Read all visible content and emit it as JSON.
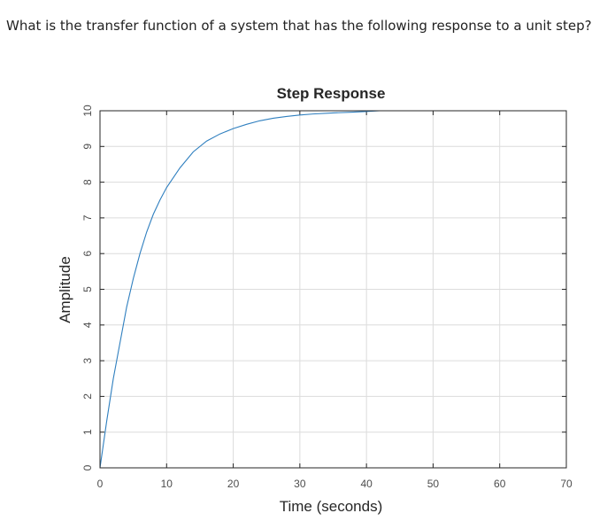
{
  "question": {
    "text": "What is the transfer function of a system that has the following response to a unit step?"
  },
  "colors": {
    "line": "#2f7fbf",
    "axis": "#262626",
    "grid": "#dcdcdc",
    "tick_text": "#4d4d4d"
  },
  "chart_data": {
    "type": "line",
    "title": "Step Response",
    "xlabel": "Time (seconds)",
    "ylabel": "Amplitude",
    "xlim": [
      0,
      70
    ],
    "ylim": [
      0,
      10
    ],
    "xticks": [
      0,
      10,
      20,
      30,
      40,
      50,
      60,
      70
    ],
    "yticks": [
      0,
      1,
      2,
      3,
      4,
      5,
      6,
      7,
      8,
      9,
      10
    ],
    "grid": true,
    "x": [
      0,
      1,
      2,
      3,
      4,
      5,
      6,
      7,
      8,
      9,
      10,
      12,
      14,
      16,
      18,
      20,
      22,
      24,
      26,
      28,
      30,
      32,
      35,
      38,
      40,
      42
    ],
    "y": [
      0,
      1.3,
      2.5,
      3.5,
      4.5,
      5.3,
      6.0,
      6.6,
      7.1,
      7.5,
      7.85,
      8.4,
      8.85,
      9.15,
      9.35,
      9.5,
      9.62,
      9.72,
      9.79,
      9.84,
      9.88,
      9.91,
      9.94,
      9.96,
      9.98,
      10.0
    ]
  }
}
